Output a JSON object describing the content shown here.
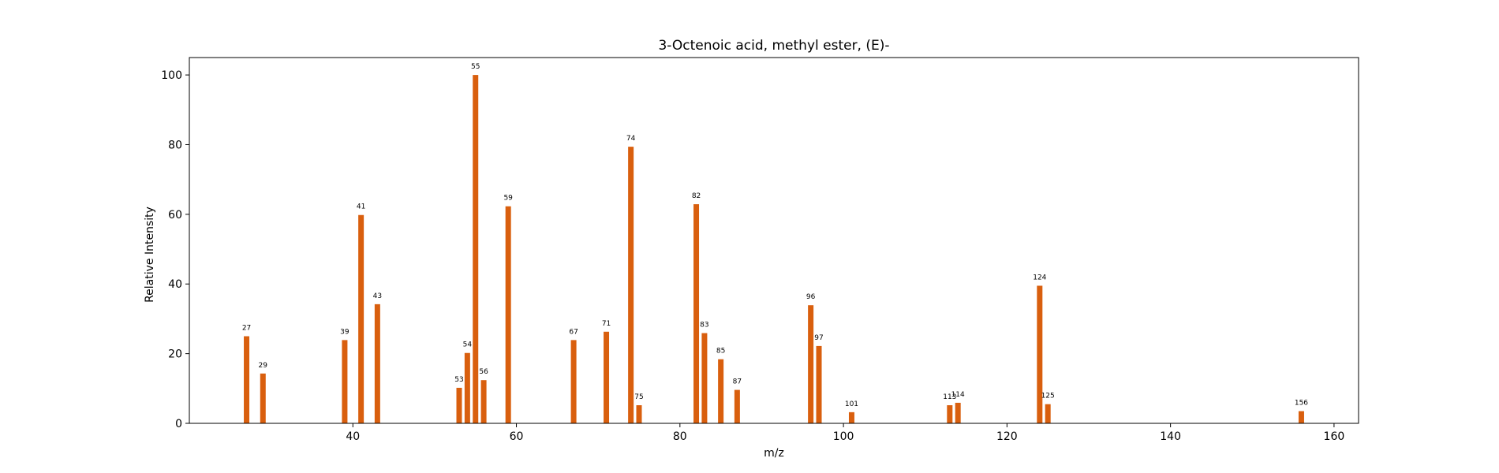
{
  "chart_data": {
    "type": "bar",
    "title": "3-Octenoic acid, methyl ester, (E)-",
    "xlabel": "m/z",
    "ylabel": "Relative Intensity",
    "xlim": [
      20,
      163
    ],
    "ylim": [
      0,
      105
    ],
    "xticks": [
      40,
      60,
      80,
      100,
      120,
      140,
      160
    ],
    "yticks": [
      0,
      20,
      40,
      60,
      80,
      100
    ],
    "grid": false,
    "bar_color": "#d95f0e",
    "peaks": [
      {
        "mz": 27,
        "intensity": 25.0,
        "label": "27"
      },
      {
        "mz": 29,
        "intensity": 14.3,
        "label": "29"
      },
      {
        "mz": 39,
        "intensity": 23.9,
        "label": "39"
      },
      {
        "mz": 41,
        "intensity": 59.8,
        "label": "41"
      },
      {
        "mz": 43,
        "intensity": 34.2,
        "label": "43"
      },
      {
        "mz": 53,
        "intensity": 10.2,
        "label": "53"
      },
      {
        "mz": 54,
        "intensity": 20.2,
        "label": "54"
      },
      {
        "mz": 55,
        "intensity": 100.0,
        "label": "55"
      },
      {
        "mz": 56,
        "intensity": 12.4,
        "label": "56"
      },
      {
        "mz": 59,
        "intensity": 62.3,
        "label": "59"
      },
      {
        "mz": 67,
        "intensity": 23.9,
        "label": "67"
      },
      {
        "mz": 71,
        "intensity": 26.3,
        "label": "71"
      },
      {
        "mz": 74,
        "intensity": 79.4,
        "label": "74"
      },
      {
        "mz": 75,
        "intensity": 5.2,
        "label": "75"
      },
      {
        "mz": 82,
        "intensity": 62.9,
        "label": "82"
      },
      {
        "mz": 83,
        "intensity": 25.9,
        "label": "83"
      },
      {
        "mz": 85,
        "intensity": 18.4,
        "label": "85"
      },
      {
        "mz": 87,
        "intensity": 9.6,
        "label": "87"
      },
      {
        "mz": 96,
        "intensity": 33.9,
        "label": "96"
      },
      {
        "mz": 97,
        "intensity": 22.2,
        "label": "97"
      },
      {
        "mz": 101,
        "intensity": 3.2,
        "label": "101"
      },
      {
        "mz": 113,
        "intensity": 5.2,
        "label": "113"
      },
      {
        "mz": 114,
        "intensity": 5.9,
        "label": "114"
      },
      {
        "mz": 124,
        "intensity": 39.5,
        "label": "124"
      },
      {
        "mz": 125,
        "intensity": 5.5,
        "label": "125"
      },
      {
        "mz": 156,
        "intensity": 3.5,
        "label": "156"
      }
    ]
  }
}
